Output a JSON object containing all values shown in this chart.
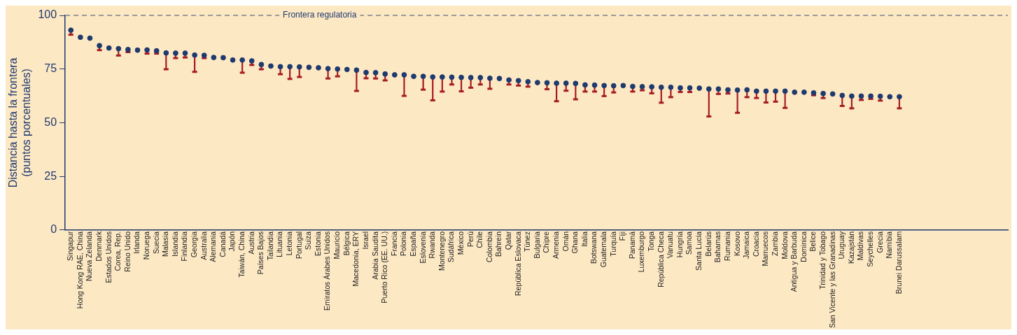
{
  "chart_data": {
    "type": "scatter",
    "ylabel": "Distancia hasta la frontera\n(puntos porcentuales)",
    "categories": [
      "Singapur",
      "Hong Kong RAE, China",
      "Nueva Zelanda",
      "Denmark",
      "Estados Unidos",
      "Corea, Rep.",
      "Reino Unido",
      "Irlanda",
      "Noruega",
      "Suecia",
      "Malasia",
      "Islandia",
      "Finlandia",
      "Georgia",
      "Australia",
      "Alemania",
      "Canadá",
      "Japón",
      "Taiwán, China",
      "Austria",
      "Países Bajos",
      "Tailandia",
      "Lituania",
      "Letonia",
      "Portugal",
      "Suiza",
      "Estonia",
      "Emiratos Árabes Unidos",
      "Mauricio",
      "Bélgica",
      "Macedonia, ERY",
      "Israel",
      "Arabia Saudita",
      "Puerto Rico (EE. UU.)",
      "Francia",
      "Polonia",
      "España",
      "Eslovenia",
      "Rwanda",
      "Montenegro",
      "Sudáfrica",
      "México",
      "Perú",
      "Chile",
      "Colombia",
      "Bahrein",
      "Qatar",
      "República Eslovaca",
      "Túnez",
      "Bulgaria",
      "Chipre",
      "Armenia",
      "Omán",
      "Ghana",
      "Italia",
      "Botswana",
      "Guatemala",
      "Turquía",
      "Fiji",
      "Panamá",
      "Luxemburgo",
      "Tonga",
      "República Checa",
      "Vanuatu",
      "Hungría",
      "Samoa",
      "Santa Lucía",
      "Belarús",
      "Bahamas",
      "Rumania",
      "Kosovo",
      "Jamaica",
      "Croacia",
      "Marruecos",
      "Zambia",
      "Moldova",
      "Antigua y Barbuda",
      "Dominica",
      "Belice",
      "Trinidad y Tobago",
      "San Vicente y las Granadinas",
      "Uruguay",
      "Kazajstán",
      "Maldivas",
      "Seychelles",
      "Grecia",
      "Namibia",
      "Brunei Darussalam"
    ],
    "series": [
      {
        "color": "#1f3a6e",
        "values": [
          93.1,
          89.8,
          89.4,
          85.9,
          84.8,
          84.5,
          84.1,
          83.8,
          83.9,
          83.5,
          82.5,
          82.4,
          82.4,
          81.5,
          81.4,
          80.4,
          80.3,
          79.2,
          79.2,
          78.8,
          77.1,
          76.4,
          76.1,
          76.1,
          76.0,
          75.8,
          75.6,
          75.2,
          75.0,
          74.8,
          74.5,
          73.4,
          73.3,
          72.7,
          72.3,
          72.3,
          71.6,
          71.6,
          71.3,
          71.3,
          71.2,
          71.1,
          71.0,
          71.0,
          70.7,
          70.6,
          69.9,
          69.6,
          69.1,
          68.7,
          68.6,
          68.4,
          68.4,
          68.3,
          67.6,
          67.5,
          67.3,
          67.2,
          67.3,
          66.9,
          66.8,
          66.7,
          66.5,
          66.5,
          66.2,
          66.2,
          66.1,
          65.7,
          65.7,
          65.3,
          65.2,
          65.3,
          64.7,
          64.7,
          64.7,
          64.7,
          64.2,
          64.2,
          63.9,
          63.6,
          63.4,
          62.7,
          62.4,
          62.4,
          62.4,
          62.3,
          62.1,
          62.1
        ],
        "errors": [
          [
            91.0,
            93.1
          ],
          null,
          null,
          [
            83.8,
            85.9
          ],
          null,
          [
            81.3,
            84.5
          ],
          [
            82.9,
            84.1
          ],
          null,
          [
            82.2,
            83.9
          ],
          [
            82.2,
            83.5
          ],
          [
            74.9,
            82.5
          ],
          [
            80.1,
            82.4
          ],
          [
            80.4,
            82.4
          ],
          [
            73.7,
            81.5
          ],
          [
            80.1,
            81.4
          ],
          null,
          null,
          null,
          [
            73.3,
            79.2
          ],
          [
            76.9,
            78.8
          ],
          [
            74.9,
            77.1
          ],
          null,
          [
            72.6,
            76.1
          ],
          [
            70.4,
            76.1
          ],
          [
            71.3,
            76.0
          ],
          null,
          null,
          [
            70.6,
            75.2
          ],
          [
            71.6,
            75.0
          ],
          null,
          [
            64.8,
            74.5
          ],
          [
            70.7,
            73.4
          ],
          [
            70.6,
            73.3
          ],
          [
            69.7,
            72.7
          ],
          null,
          [
            62.5,
            72.3
          ],
          null,
          [
            65.4,
            71.6
          ],
          [
            60.4,
            71.3
          ],
          [
            64.5,
            71.3
          ],
          [
            67.8,
            71.2
          ],
          [
            64.6,
            71.1
          ],
          [
            66.3,
            71.0
          ],
          [
            67.8,
            71.0
          ],
          [
            65.8,
            70.7
          ],
          null,
          [
            67.8,
            69.9
          ],
          [
            67.3,
            69.6
          ],
          [
            66.8,
            69.1
          ],
          null,
          [
            65.6,
            68.6
          ],
          [
            60.0,
            68.4
          ],
          [
            64.9,
            68.4
          ],
          [
            60.9,
            68.3
          ],
          [
            64.5,
            67.6
          ],
          [
            64.5,
            67.5
          ],
          [
            62.4,
            67.3
          ],
          [
            64.1,
            67.2
          ],
          null,
          [
            64.5,
            66.9
          ],
          [
            65.1,
            66.8
          ],
          [
            63.7,
            66.7
          ],
          [
            59.3,
            66.5
          ],
          [
            61.9,
            66.5
          ],
          [
            64.3,
            66.2
          ],
          [
            64.3,
            66.2
          ],
          null,
          [
            52.9,
            65.7
          ],
          [
            63.4,
            65.7
          ],
          [
            63.6,
            65.3
          ],
          [
            54.6,
            65.2
          ],
          [
            61.9,
            65.3
          ],
          [
            61.5,
            64.7
          ],
          [
            59.4,
            64.7
          ],
          [
            59.8,
            64.7
          ],
          [
            56.9,
            64.7
          ],
          null,
          null,
          [
            62.8,
            63.9
          ],
          [
            61.5,
            63.6
          ],
          null,
          [
            57.8,
            62.7
          ],
          [
            56.7,
            62.4
          ],
          [
            60.6,
            62.4
          ],
          [
            61.1,
            62.4
          ],
          [
            60.3,
            62.3
          ],
          null,
          [
            56.7,
            62.1
          ]
        ]
      }
    ],
    "ylim": [
      0,
      100
    ],
    "yticks": [
      0,
      25,
      50,
      75,
      100
    ],
    "grid": false,
    "legend": false,
    "marker": "circle",
    "ref_lines": [
      {
        "axis": "y",
        "value": 100,
        "label": "Frontera regulatoria",
        "color": "#9a9a9a",
        "line_style": "dashed"
      }
    ]
  }
}
